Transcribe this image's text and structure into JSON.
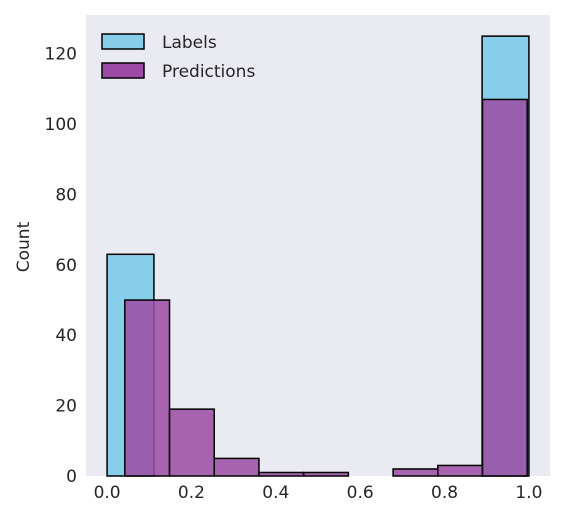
{
  "chart_data": {
    "type": "bar",
    "title": "",
    "xlabel": "",
    "ylabel": "Count",
    "xlim": [
      -0.05,
      1.05
    ],
    "ylim": [
      0,
      131
    ],
    "x_ticks": [
      0.0,
      0.2,
      0.4,
      0.6,
      0.8,
      1.0
    ],
    "x_tick_labels": [
      "0.0",
      "0.2",
      "0.4",
      "0.6",
      "0.8",
      "1.0"
    ],
    "y_ticks": [
      0,
      20,
      40,
      60,
      80,
      100,
      120
    ],
    "y_tick_labels": [
      "0",
      "20",
      "40",
      "60",
      "80",
      "100",
      "120"
    ],
    "grid": false,
    "legend_position": "top-left",
    "series": [
      {
        "name": "Labels",
        "color": "#87CEEB",
        "bins": [
          {
            "x0": 0.0,
            "x1": 0.111,
            "value": 63
          },
          {
            "x0": 0.889,
            "x1": 1.0,
            "value": 125
          }
        ]
      },
      {
        "name": "Predictions",
        "color": "#9B4BA5",
        "bins": [
          {
            "x0": 0.042,
            "x1": 0.148,
            "value": 50
          },
          {
            "x0": 0.148,
            "x1": 0.254,
            "value": 19
          },
          {
            "x0": 0.254,
            "x1": 0.36,
            "value": 5
          },
          {
            "x0": 0.36,
            "x1": 0.466,
            "value": 1
          },
          {
            "x0": 0.466,
            "x1": 0.572,
            "value": 1
          },
          {
            "x0": 0.572,
            "x1": 0.678,
            "value": 0
          },
          {
            "x0": 0.678,
            "x1": 0.784,
            "value": 2
          },
          {
            "x0": 0.784,
            "x1": 0.89,
            "value": 3
          },
          {
            "x0": 0.89,
            "x1": 0.996,
            "value": 107
          }
        ]
      }
    ]
  }
}
